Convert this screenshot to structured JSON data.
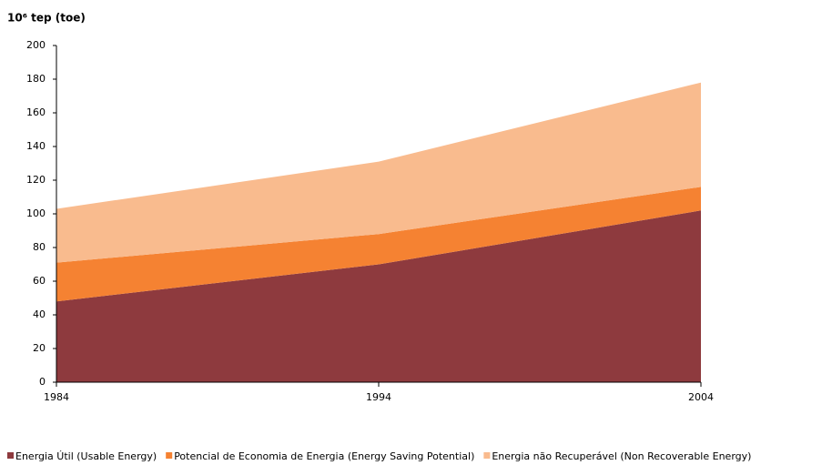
{
  "chart_data": {
    "type": "stacked_area",
    "title": "10⁶ tep (toe)",
    "x": [
      1984,
      1994,
      2004
    ],
    "xlim": [
      1984,
      2004
    ],
    "xticks": [
      1984,
      1994,
      2004
    ],
    "ylim": [
      0,
      200
    ],
    "yticks": [
      0,
      20,
      40,
      60,
      80,
      100,
      120,
      140,
      160,
      180,
      200
    ],
    "grid": false,
    "legend": "bottom",
    "series": [
      {
        "name": "Energia Útil (Usable Energy)",
        "color": "#8e3a3e",
        "values": [
          48,
          70,
          102
        ]
      },
      {
        "name": "Potencial de Economia de Energia (Energy Saving Potential)",
        "color": "#f58232",
        "values": [
          23,
          18,
          14
        ]
      },
      {
        "name": "Energia não Recuperável (Non Recoverable Energy)",
        "color": "#f9bb8e",
        "values": [
          32,
          43,
          62
        ]
      }
    ]
  }
}
